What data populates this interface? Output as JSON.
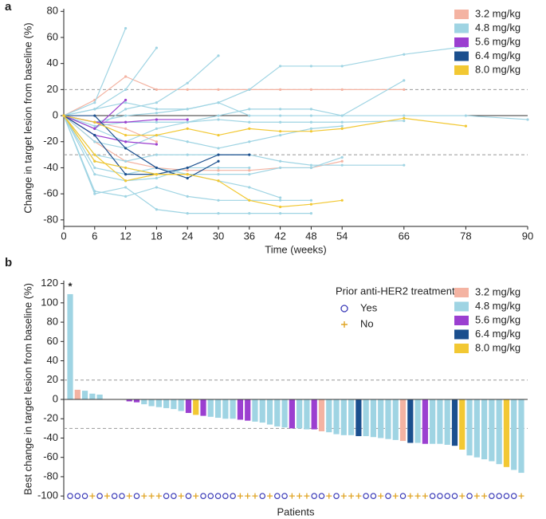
{
  "chart_data": [
    {
      "type": "line",
      "label": "a",
      "ylabel": "Change in target lesion from baseline (%)",
      "xlabel": "Time (weeks)",
      "xlim": [
        0,
        90
      ],
      "ylim": [
        -85,
        82
      ],
      "xticks": [
        0,
        6,
        12,
        18,
        24,
        30,
        36,
        42,
        48,
        54,
        66,
        78,
        90
      ],
      "yticks": [
        -80,
        -60,
        -40,
        -20,
        0,
        20,
        40,
        60,
        80
      ],
      "reference_lines": [
        20,
        -30
      ],
      "legend": [
        {
          "name": "3.2 mg/kg",
          "color": "#f4b3a2"
        },
        {
          "name": "4.8 mg/kg",
          "color": "#9fd4e3"
        },
        {
          "name": "5.6 mg/kg",
          "color": "#9b3fd0"
        },
        {
          "name": "6.4 mg/kg",
          "color": "#1b4f8e"
        },
        {
          "name": "8.0 mg/kg",
          "color": "#f2c833"
        }
      ],
      "x": [
        0,
        6,
        12,
        18,
        24,
        30,
        36,
        42,
        48,
        54,
        66,
        78,
        90
      ],
      "series": [
        {
          "color": "#f4b3a2",
          "values": [
            0,
            12,
            30,
            20,
            20,
            20,
            20,
            20,
            20,
            20,
            20,
            null,
            null
          ]
        },
        {
          "color": "#f4b3a2",
          "values": [
            0,
            -20,
            -35,
            -40,
            -42,
            -42,
            -42,
            -40,
            -40,
            -35,
            null,
            null,
            null
          ]
        },
        {
          "color": "#f4b3a2",
          "values": [
            0,
            -5,
            -10,
            -20,
            null,
            null,
            null,
            null,
            null,
            null,
            null,
            null,
            null
          ]
        },
        {
          "color": "#9fd4e3",
          "values": [
            0,
            10,
            67,
            null,
            null,
            null,
            null,
            null,
            null,
            null,
            null,
            null,
            null
          ]
        },
        {
          "color": "#9fd4e3",
          "values": [
            0,
            5,
            20,
            52,
            null,
            null,
            null,
            null,
            null,
            null,
            null,
            null,
            null
          ]
        },
        {
          "color": "#9fd4e3",
          "values": [
            0,
            -10,
            5,
            10,
            25,
            46,
            null,
            null,
            null,
            null,
            null,
            null,
            null
          ]
        },
        {
          "color": "#9fd4e3",
          "values": [
            0,
            5,
            10,
            5,
            5,
            10,
            20,
            38,
            38,
            38,
            47,
            53,
            null
          ]
        },
        {
          "color": "#9fd4e3",
          "values": [
            0,
            -5,
            0,
            2,
            5,
            10,
            0,
            0,
            0,
            0,
            0,
            0,
            -3
          ]
        },
        {
          "color": "#9fd4e3",
          "values": [
            0,
            -10,
            -20,
            -10,
            -5,
            0,
            5,
            5,
            5,
            0,
            27,
            null,
            null
          ]
        },
        {
          "color": "#9fd4e3",
          "values": [
            0,
            -60,
            -55,
            -72,
            -75,
            -75,
            -75,
            -75,
            -75,
            null,
            null,
            null,
            null
          ]
        },
        {
          "color": "#9fd4e3",
          "values": [
            0,
            -58,
            -62,
            -55,
            -62,
            -65,
            -65,
            -65,
            -65,
            null,
            null,
            null,
            null
          ]
        },
        {
          "color": "#9fd4e3",
          "values": [
            0,
            -40,
            -45,
            -40,
            -45,
            -50,
            -55,
            -63,
            null,
            null,
            null,
            null,
            null
          ]
        },
        {
          "color": "#9fd4e3",
          "values": [
            0,
            -30,
            -35,
            -30,
            -30,
            -30,
            -30,
            -35,
            -38,
            -38,
            -38,
            null,
            null
          ]
        },
        {
          "color": "#9fd4e3",
          "values": [
            0,
            -20,
            -25,
            -15,
            -20,
            -25,
            -20,
            -15,
            -10,
            -8,
            null,
            null,
            null
          ]
        },
        {
          "color": "#9fd4e3",
          "values": [
            0,
            -8,
            -5,
            -5,
            -5,
            -3,
            -5,
            -5,
            -5,
            -5,
            -4,
            null,
            null
          ]
        },
        {
          "color": "#9fd4e3",
          "values": [
            0,
            -35,
            -40,
            -45,
            -45,
            -45,
            -45,
            -40,
            -40,
            -32,
            null,
            null,
            null
          ]
        },
        {
          "color": "#9fd4e3",
          "values": [
            0,
            -45,
            -50,
            -48,
            -40,
            -40,
            -40,
            null,
            null,
            null,
            null,
            null,
            null
          ]
        },
        {
          "color": "#9b3fd0",
          "values": [
            0,
            -10,
            12,
            null,
            null,
            null,
            null,
            null,
            null,
            null,
            null,
            null,
            null
          ]
        },
        {
          "color": "#9b3fd0",
          "values": [
            0,
            -15,
            -20,
            -22,
            null,
            null,
            null,
            null,
            null,
            null,
            null,
            null,
            null
          ]
        },
        {
          "color": "#9b3fd0",
          "values": [
            0,
            -5,
            -5,
            -3,
            -3,
            null,
            null,
            null,
            null,
            null,
            null,
            null,
            null
          ]
        },
        {
          "color": "#1b4f8e",
          "values": [
            0,
            0,
            -25,
            -40,
            -48,
            -35,
            null,
            null,
            null,
            null,
            null,
            null,
            null
          ]
        },
        {
          "color": "#1b4f8e",
          "values": [
            0,
            -15,
            -45,
            -45,
            -40,
            -30,
            -30,
            null,
            null,
            null,
            null,
            null,
            null
          ]
        },
        {
          "color": "#f2c833",
          "values": [
            0,
            -30,
            -50,
            -45,
            -45,
            -50,
            -65,
            -70,
            -68,
            -65,
            null,
            null,
            null
          ]
        },
        {
          "color": "#f2c833",
          "values": [
            0,
            -5,
            -15,
            -15,
            -10,
            -15,
            -10,
            -12,
            -12,
            -10,
            -2,
            -8,
            null
          ]
        },
        {
          "color": "#f2c833",
          "values": [
            0,
            -35,
            -40,
            -45,
            -45,
            null,
            null,
            null,
            null,
            null,
            null,
            null,
            null
          ]
        }
      ]
    },
    {
      "type": "bar",
      "label": "b",
      "ylabel": "Best change in target lesion from baseline (%)",
      "xlabel": "Patients",
      "ylim": [
        -104,
        123
      ],
      "yticks": [
        -100,
        -80,
        -60,
        -40,
        -20,
        0,
        20,
        40,
        60,
        80,
        100,
        120
      ],
      "reference_lines": [
        20,
        -30
      ],
      "annotation": "*",
      "legend": [
        {
          "name": "3.2 mg/kg",
          "color": "#f4b3a2"
        },
        {
          "name": "4.8 mg/kg",
          "color": "#9fd4e3"
        },
        {
          "name": "5.6 mg/kg",
          "color": "#9b3fd0"
        },
        {
          "name": "6.4 mg/kg",
          "color": "#1b4f8e"
        },
        {
          "name": "8.0 mg/kg",
          "color": "#f2c833"
        }
      ],
      "marker_legend": {
        "title": "Prior anti-HER2 treatment",
        "entries": [
          "Yes",
          "No"
        ]
      },
      "marker_baseline": -100,
      "values": [
        109,
        10,
        9,
        6,
        5,
        0,
        0,
        0,
        -2,
        -3,
        -5,
        -7,
        -8,
        -9,
        -10,
        -12,
        -14,
        -16,
        -17,
        -18,
        -19,
        -20,
        -20,
        -21,
        -22,
        -23,
        -24,
        -26,
        -28,
        -29,
        -30,
        -30,
        -31,
        -31,
        -33,
        -34,
        -36,
        -37,
        -37,
        -38,
        -38,
        -39,
        -40,
        -41,
        -42,
        -43,
        -45,
        -45,
        -46,
        -46,
        -46,
        -47,
        -48,
        -52,
        -58,
        -60,
        -62,
        -64,
        -67,
        -70,
        -73,
        -76
      ],
      "colors": [
        "#9fd4e3",
        "#f4b3a2",
        "#9fd4e3",
        "#9fd4e3",
        "#9fd4e3",
        "#9fd4e3",
        "#9fd4e3",
        "#9fd4e3",
        "#9b3fd0",
        "#9b3fd0",
        "#9fd4e3",
        "#9fd4e3",
        "#9fd4e3",
        "#9fd4e3",
        "#9fd4e3",
        "#9fd4e3",
        "#9b3fd0",
        "#f2c833",
        "#9b3fd0",
        "#9fd4e3",
        "#9fd4e3",
        "#9fd4e3",
        "#9fd4e3",
        "#9b3fd0",
        "#9b3fd0",
        "#9fd4e3",
        "#9fd4e3",
        "#9fd4e3",
        "#9fd4e3",
        "#9fd4e3",
        "#9b3fd0",
        "#9fd4e3",
        "#9fd4e3",
        "#9b3fd0",
        "#f4b3a2",
        "#9fd4e3",
        "#9fd4e3",
        "#9fd4e3",
        "#9fd4e3",
        "#1b4f8e",
        "#9fd4e3",
        "#9fd4e3",
        "#9fd4e3",
        "#9fd4e3",
        "#9fd4e3",
        "#f4b3a2",
        "#1b4f8e",
        "#9fd4e3",
        "#9b3fd0",
        "#9fd4e3",
        "#9fd4e3",
        "#9fd4e3",
        "#1b4f8e",
        "#f2c833",
        "#9fd4e3",
        "#9fd4e3",
        "#9fd4e3",
        "#9fd4e3",
        "#9fd4e3",
        "#f2c833",
        "#9fd4e3",
        "#9fd4e3"
      ],
      "prior_anti_her2": [
        true,
        true,
        true,
        false,
        true,
        false,
        true,
        true,
        false,
        true,
        false,
        false,
        false,
        true,
        true,
        false,
        true,
        false,
        true,
        true,
        true,
        true,
        true,
        false,
        false,
        false,
        true,
        false,
        true,
        true,
        false,
        false,
        false,
        true,
        true,
        false,
        true,
        false,
        false,
        false,
        true,
        true,
        false,
        true,
        false,
        true,
        false,
        false,
        false,
        true,
        true,
        true,
        true,
        false,
        true,
        false,
        false,
        true,
        true,
        true,
        true,
        false
      ]
    }
  ]
}
